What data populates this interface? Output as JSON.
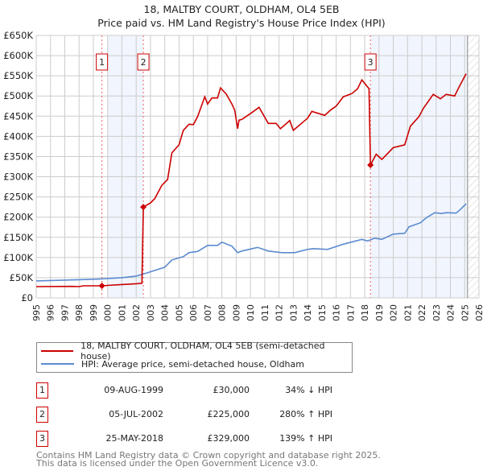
{
  "title_line1": "18, MALTBY COURT, OLDHAM, OL4 5EB",
  "title_line2": "Price paid vs. HM Land Registry's House Price Index (HPI)",
  "chart_data": {
    "type": "line",
    "title": "Price paid vs. HM Land Registry's House Price Index (HPI)",
    "xlabel": "",
    "ylabel": "",
    "xlim": [
      1995,
      2026
    ],
    "ylim": [
      0,
      650000
    ],
    "x_ticks": [
      "1995",
      "1996",
      "1997",
      "1998",
      "1999",
      "2000",
      "2001",
      "2002",
      "2003",
      "2004",
      "2005",
      "2006",
      "2007",
      "2008",
      "2009",
      "2010",
      "2011",
      "2012",
      "2013",
      "2014",
      "2015",
      "2016",
      "2017",
      "2018",
      "2019",
      "2020",
      "2021",
      "2022",
      "2023",
      "2024",
      "2025",
      "2026"
    ],
    "y_ticks": [
      {
        "v": 0,
        "label": "£0"
      },
      {
        "v": 50000,
        "label": "£50K"
      },
      {
        "v": 100000,
        "label": "£100K"
      },
      {
        "v": 150000,
        "label": "£150K"
      },
      {
        "v": 200000,
        "label": "£200K"
      },
      {
        "v": 250000,
        "label": "£250K"
      },
      {
        "v": 300000,
        "label": "£300K"
      },
      {
        "v": 350000,
        "label": "£350K"
      },
      {
        "v": 400000,
        "label": "£400K"
      },
      {
        "v": 450000,
        "label": "£450K"
      },
      {
        "v": 500000,
        "label": "£500K"
      },
      {
        "v": 550000,
        "label": "£550K"
      },
      {
        "v": 600000,
        "label": "£600K"
      },
      {
        "v": 650000,
        "label": "£650K"
      }
    ],
    "grid": true,
    "shaded_ranges": [
      [
        2000.0,
        2002.5
      ],
      [
        2018.4,
        2025.2
      ]
    ],
    "forecast_hatch_from": 2025.2,
    "series": [
      {
        "name": "18, MALTBY COURT, OLDHAM, OL4 5EB (semi-detached house)",
        "color": "#cc0000",
        "points": [
          [
            1995,
            28000
          ],
          [
            1997.5,
            28500
          ],
          [
            1998,
            28000
          ],
          [
            1998.3,
            30000
          ],
          [
            1999.6,
            30000
          ],
          [
            2000,
            31000
          ],
          [
            2001,
            33000
          ],
          [
            2002,
            35000
          ],
          [
            2002.4,
            36000
          ],
          [
            2002.5,
            225000
          ],
          [
            2003,
            235000
          ],
          [
            2003.3,
            246000
          ],
          [
            2003.8,
            279000
          ],
          [
            2004.2,
            293000
          ],
          [
            2004.5,
            359000
          ],
          [
            2005,
            379000
          ],
          [
            2005.3,
            415000
          ],
          [
            2005.7,
            430000
          ],
          [
            2006,
            429000
          ],
          [
            2006.3,
            449000
          ],
          [
            2006.8,
            498000
          ],
          [
            2007,
            480000
          ],
          [
            2007.3,
            495000
          ],
          [
            2007.7,
            495000
          ],
          [
            2007.9,
            520000
          ],
          [
            2008.3,
            505000
          ],
          [
            2008.7,
            480000
          ],
          [
            2008.9,
            465000
          ],
          [
            2009.1,
            419000
          ],
          [
            2009.2,
            440000
          ],
          [
            2009.4,
            442000
          ],
          [
            2010.1,
            459000
          ],
          [
            2010.6,
            472000
          ],
          [
            2011.25,
            432000
          ],
          [
            2011.8,
            432000
          ],
          [
            2012.1,
            419000
          ],
          [
            2012.75,
            439000
          ],
          [
            2013,
            415000
          ],
          [
            2014,
            445000
          ],
          [
            2014.3,
            462000
          ],
          [
            2015.2,
            452000
          ],
          [
            2015.6,
            465000
          ],
          [
            2016,
            475000
          ],
          [
            2016.5,
            498000
          ],
          [
            2017.1,
            506000
          ],
          [
            2017.5,
            518000
          ],
          [
            2017.8,
            540000
          ],
          [
            2018.3,
            518000
          ],
          [
            2018.4,
            329000
          ],
          [
            2018.8,
            356000
          ],
          [
            2019.2,
            343000
          ],
          [
            2020,
            372000
          ],
          [
            2020.8,
            379000
          ],
          [
            2021.2,
            425000
          ],
          [
            2021.8,
            449000
          ],
          [
            2022.1,
            469000
          ],
          [
            2022.8,
            504000
          ],
          [
            2023.3,
            493000
          ],
          [
            2023.7,
            504000
          ],
          [
            2024.3,
            500000
          ],
          [
            2024.6,
            522000
          ],
          [
            2025.1,
            555000
          ]
        ]
      },
      {
        "name": "HPI: Average price, semi-detached house, Oldham",
        "color": "#5b8bd0",
        "points": [
          [
            1995,
            42000
          ],
          [
            1998,
            45000
          ],
          [
            1999.6,
            47000
          ],
          [
            2000.5,
            49000
          ],
          [
            2001,
            50000
          ],
          [
            2002,
            54000
          ],
          [
            2002.6,
            60000
          ],
          [
            2003.3,
            68000
          ],
          [
            2004,
            76000
          ],
          [
            2004.5,
            94000
          ],
          [
            2005.3,
            102000
          ],
          [
            2005.7,
            112000
          ],
          [
            2006.3,
            115000
          ],
          [
            2007,
            130000
          ],
          [
            2007.7,
            130000
          ],
          [
            2008,
            138000
          ],
          [
            2008.7,
            128000
          ],
          [
            2009.1,
            112000
          ],
          [
            2009.4,
            116000
          ],
          [
            2010.5,
            125000
          ],
          [
            2011.25,
            116000
          ],
          [
            2012.2,
            112000
          ],
          [
            2013.1,
            112000
          ],
          [
            2014,
            120000
          ],
          [
            2014.4,
            122000
          ],
          [
            2015.4,
            120000
          ],
          [
            2016.5,
            133000
          ],
          [
            2017.8,
            145000
          ],
          [
            2018.2,
            141000
          ],
          [
            2018.7,
            148000
          ],
          [
            2019.2,
            145000
          ],
          [
            2020,
            158000
          ],
          [
            2020.8,
            160000
          ],
          [
            2021.1,
            176000
          ],
          [
            2021.9,
            186000
          ],
          [
            2022.3,
            198000
          ],
          [
            2022.9,
            211000
          ],
          [
            2023.4,
            209000
          ],
          [
            2023.7,
            211000
          ],
          [
            2024.4,
            210000
          ],
          [
            2024.7,
            219000
          ],
          [
            2025.1,
            233000
          ]
        ]
      }
    ],
    "sales": [
      {
        "num": "1",
        "x": 1999.6,
        "price": 30000
      },
      {
        "num": "2",
        "x": 2002.5,
        "price": 225000
      },
      {
        "num": "3",
        "x": 2018.4,
        "price": 329000
      }
    ]
  },
  "legend": {
    "property": "18, MALTBY COURT, OLDHAM, OL4 5EB (semi-detached house)",
    "hpi": "HPI: Average price, semi-detached house, Oldham"
  },
  "sales_table": [
    {
      "num": "1",
      "date": "09-AUG-1999",
      "price": "£30,000",
      "hpi": "34% ↓ HPI"
    },
    {
      "num": "2",
      "date": "05-JUL-2002",
      "price": "£225,000",
      "hpi": "280% ↑ HPI"
    },
    {
      "num": "3",
      "date": "25-MAY-2018",
      "price": "£329,000",
      "hpi": "139% ↑ HPI"
    }
  ],
  "footer": {
    "line1": "Contains HM Land Registry data © Crown copyright and database right 2025.",
    "line2": "This data is licensed under the Open Government Licence v3.0."
  }
}
